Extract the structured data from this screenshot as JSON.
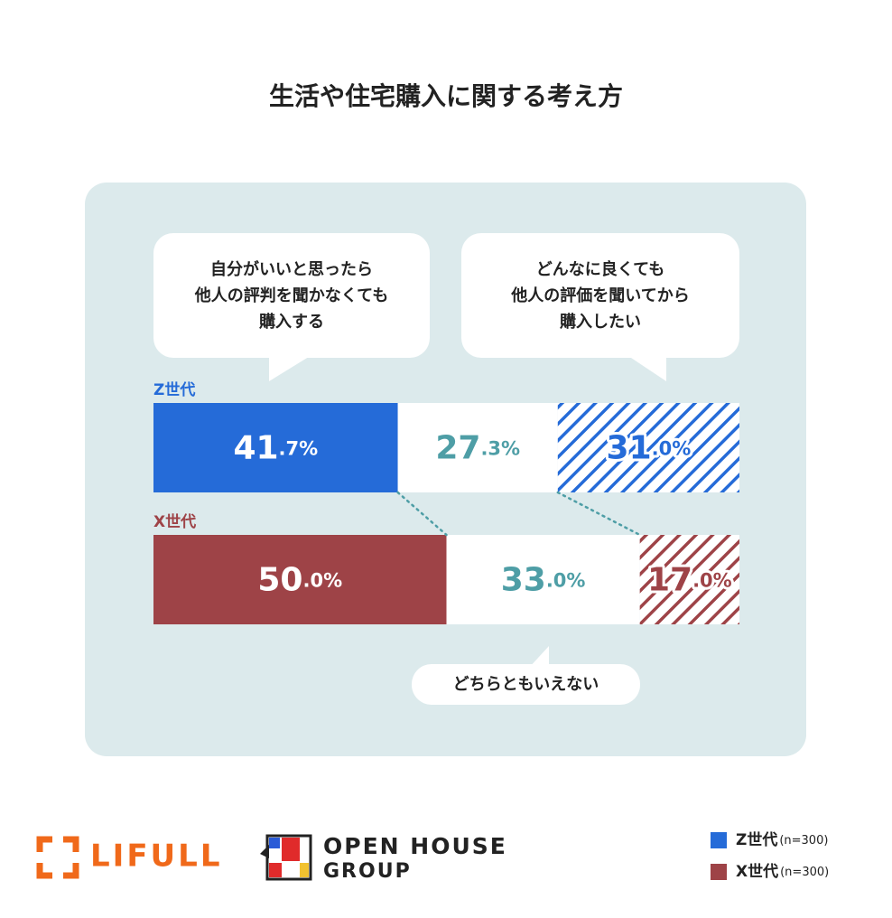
{
  "chart_data": {
    "type": "stacked-bar-horizontal",
    "title": "生活や住宅購入に関する考え方",
    "categories": [
      "Z世代",
      "X世代"
    ],
    "category_colors": [
      "#256bd8",
      "#9e4347"
    ],
    "xlim": [
      0,
      100
    ],
    "series": [
      {
        "name": "自分がいいと思ったら\n他人の評判を聞かなくても\n購入する",
        "style": "solid",
        "values": [
          41.7,
          50.0
        ],
        "value_labels": [
          "41.7%",
          "50.0%"
        ]
      },
      {
        "name": "どちらともいえない",
        "style": "blank",
        "label_color": "#4e9ea6",
        "values": [
          27.3,
          33.0
        ],
        "value_labels": [
          "27.3%",
          "33.0%"
        ]
      },
      {
        "name": "どんなに良くても\n他人の評価を聞いてから\n購入したい",
        "style": "hatched",
        "values": [
          31.0,
          17.0
        ],
        "value_labels": [
          "31.0%",
          "17.0%"
        ]
      }
    ],
    "legend": [
      {
        "name": "Z世代",
        "note": "(n=300)"
      },
      {
        "name": "X世代",
        "note": "(n=300)"
      }
    ]
  },
  "logos": {
    "lifull": "LIFULL",
    "openhouse": "OPEN HOUSE",
    "group": "GROUP"
  }
}
